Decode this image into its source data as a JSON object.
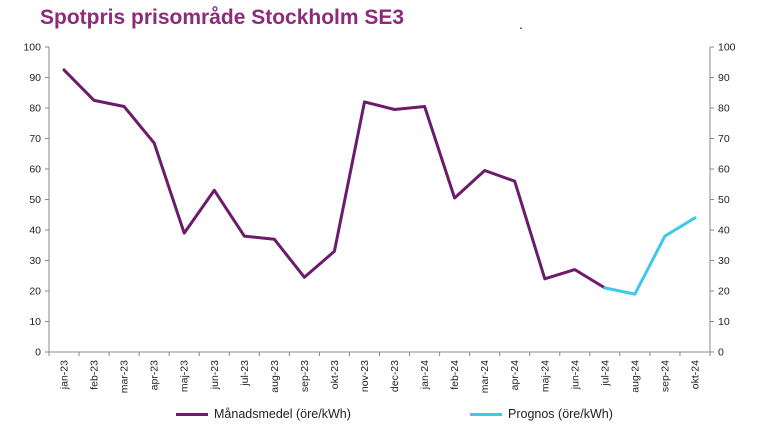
{
  "chart_data": {
    "type": "line",
    "title": "Spotpris prisområde Stockholm SE3",
    "title_color": "#8b2b7a",
    "categories": [
      "jan-23",
      "feb-23",
      "mar-23",
      "apr-23",
      "maj-23",
      "jun-23",
      "jul-23",
      "aug-23",
      "sep-23",
      "okt-23",
      "nov-23",
      "dec-23",
      "jan-24",
      "feb-24",
      "mar-24",
      "apr-24",
      "maj-24",
      "jun-24",
      "jul-24",
      "aug-24",
      "sep-24",
      "okt-24"
    ],
    "ylim": [
      0,
      100
    ],
    "yticks": [
      "0",
      "10",
      "20",
      "30",
      "40",
      "50",
      "60",
      "70",
      "80",
      "90",
      "100"
    ],
    "grid": false,
    "legend_position": "bottom",
    "series": [
      {
        "name": "Månadsmedel (öre/kWh)",
        "color": "#6b1c6b",
        "values": [
          92.5,
          82.5,
          80.5,
          68.5,
          39,
          53,
          38,
          37,
          24.5,
          33,
          82,
          79.5,
          80.5,
          50.5,
          59.5,
          56,
          24,
          27,
          21,
          null,
          null,
          null
        ]
      },
      {
        "name": "Prognos (öre/kWh)",
        "color": "#3ec8e8",
        "values": [
          null,
          null,
          null,
          null,
          null,
          null,
          null,
          null,
          null,
          null,
          null,
          null,
          null,
          null,
          null,
          null,
          null,
          null,
          21,
          19,
          38,
          44
        ]
      }
    ]
  },
  "decorative_mark": "."
}
